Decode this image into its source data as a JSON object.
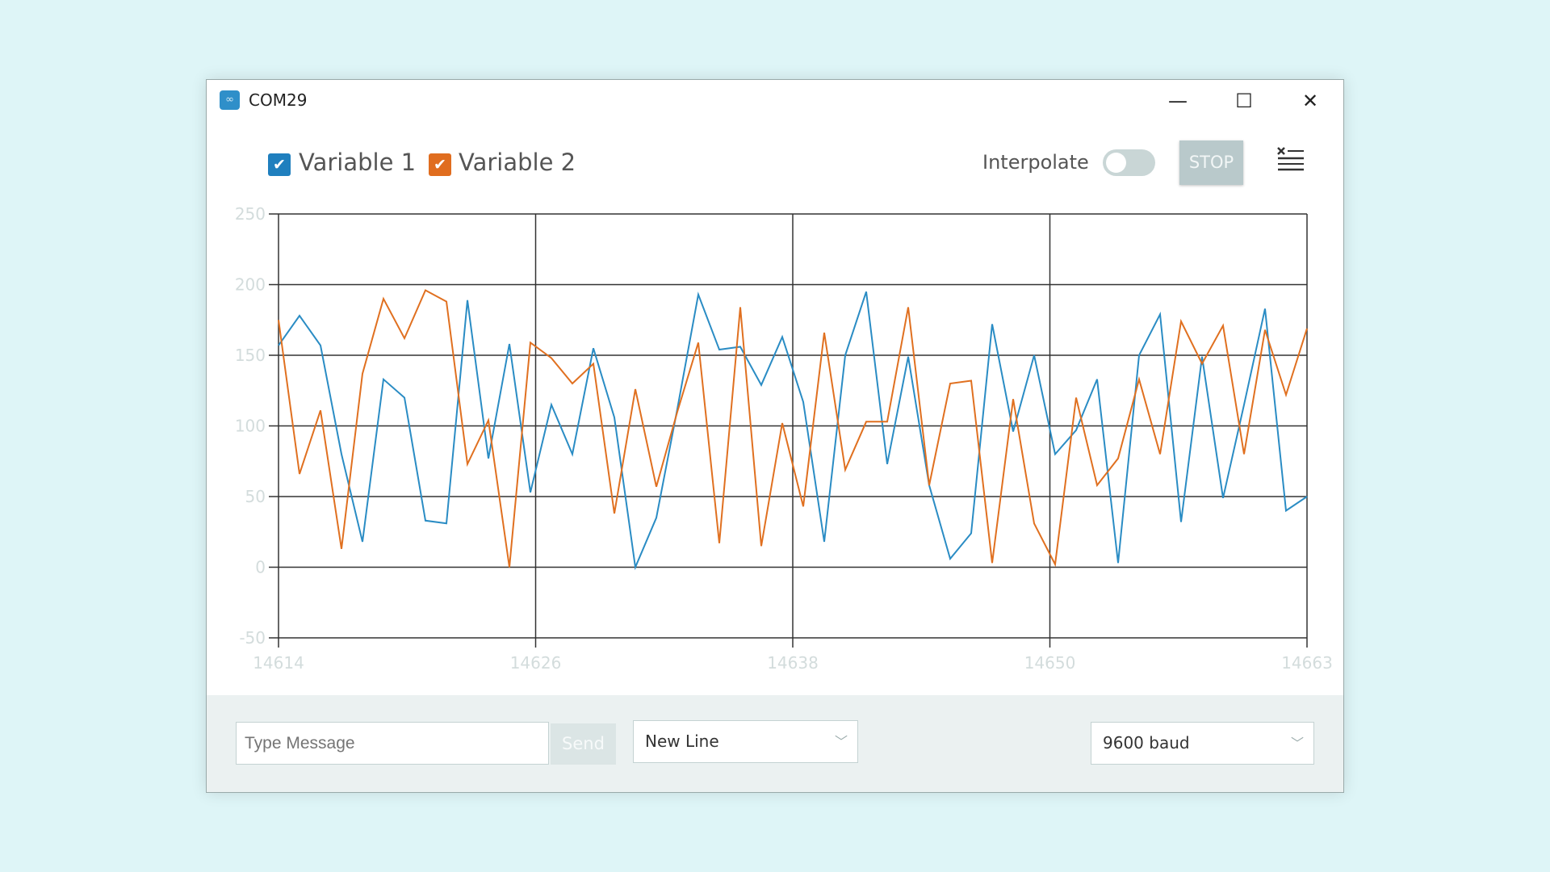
{
  "window": {
    "title": "COM29",
    "controls": {
      "minimize": "—",
      "maximize": "☐",
      "close": "✕"
    }
  },
  "toolbar": {
    "variables": [
      {
        "label": "Variable 1",
        "checked": true,
        "color": "#1f7fbe"
      },
      {
        "label": "Variable 2",
        "checked": true,
        "color": "#e06d1f"
      }
    ],
    "interpolate_label": "Interpolate",
    "interpolate_on": false,
    "stop_label": "STOP",
    "clear_icon": "clear-list-icon"
  },
  "chart_data": {
    "type": "line",
    "title": "",
    "xlabel": "",
    "ylabel": "",
    "xlim": [
      14614,
      14663
    ],
    "ylim": [
      -50,
      250
    ],
    "y_ticks": [
      -50,
      0,
      50,
      100,
      150,
      200,
      250
    ],
    "y_tick_labels": [
      "-50",
      "0",
      "50",
      "100",
      "150",
      "200",
      "250"
    ],
    "x_ticks": [
      14614,
      14626.25,
      14638.5,
      14650.75,
      14663
    ],
    "x_tick_labels": [
      "14614",
      "14626",
      "14638",
      "14650",
      "14663"
    ],
    "grid": true,
    "x_start": 14614,
    "series": [
      {
        "name": "Variable 1",
        "color": "#2a8cc4",
        "values": [
          157,
          178,
          157,
          80,
          18,
          133,
          120,
          33,
          31,
          189,
          77,
          158,
          53,
          115,
          80,
          155,
          106,
          0,
          35,
          112,
          193,
          154,
          156,
          129,
          163,
          117,
          18,
          150,
          195,
          73,
          149,
          58,
          6,
          24,
          172,
          96,
          150,
          80,
          97,
          133,
          3,
          150,
          179,
          32,
          149,
          49,
          115,
          183,
          40,
          50
        ]
      },
      {
        "name": "Variable 2",
        "color": "#e07020",
        "values": [
          175,
          66,
          111,
          13,
          137,
          190,
          162,
          196,
          188,
          73,
          104,
          0,
          159,
          148,
          130,
          144,
          38,
          126,
          57,
          110,
          159,
          17,
          184,
          15,
          102,
          43,
          166,
          69,
          103,
          103,
          184,
          58,
          130,
          132,
          3,
          119,
          31,
          2,
          120,
          58,
          77,
          133,
          80,
          174,
          144,
          171,
          80,
          168,
          122,
          169
        ]
      }
    ]
  },
  "bottom": {
    "message_placeholder": "Type Message",
    "message_value": "",
    "send_label": "Send",
    "line_ending": "New Line",
    "baud": "9600 baud"
  }
}
